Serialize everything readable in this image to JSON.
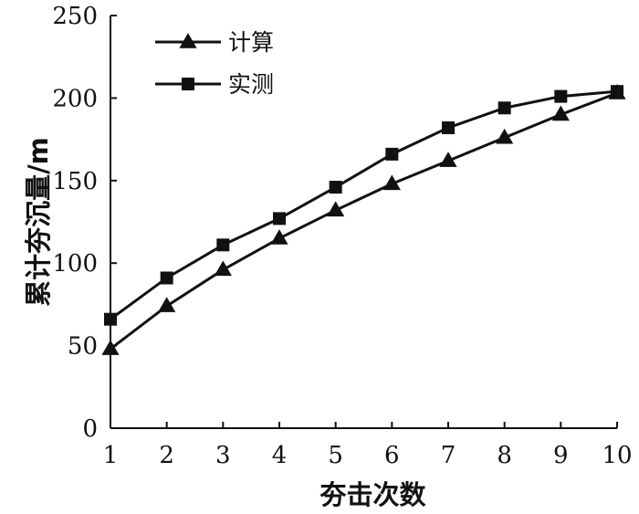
{
  "chart_data": {
    "type": "line",
    "xlabel": "夯击次数",
    "ylabel": "累计夯沉量/m",
    "x": [
      1,
      2,
      3,
      4,
      5,
      6,
      7,
      8,
      9,
      10
    ],
    "xlim": [
      1,
      10
    ],
    "ylim": [
      0,
      250
    ],
    "yticks": [
      0,
      50,
      100,
      150,
      200,
      250
    ],
    "xticks": [
      1,
      2,
      3,
      4,
      5,
      6,
      7,
      8,
      9,
      10
    ],
    "grid": false,
    "legend_position": "top-left",
    "series": [
      {
        "name": "计算",
        "marker": "triangle",
        "color": "#111111",
        "values": [
          48,
          74,
          96,
          115,
          132,
          148,
          162,
          176,
          190,
          203
        ]
      },
      {
        "name": "实测",
        "marker": "square",
        "color": "#111111",
        "values": [
          66,
          91,
          111,
          127,
          146,
          166,
          182,
          194,
          201,
          204
        ]
      }
    ]
  }
}
